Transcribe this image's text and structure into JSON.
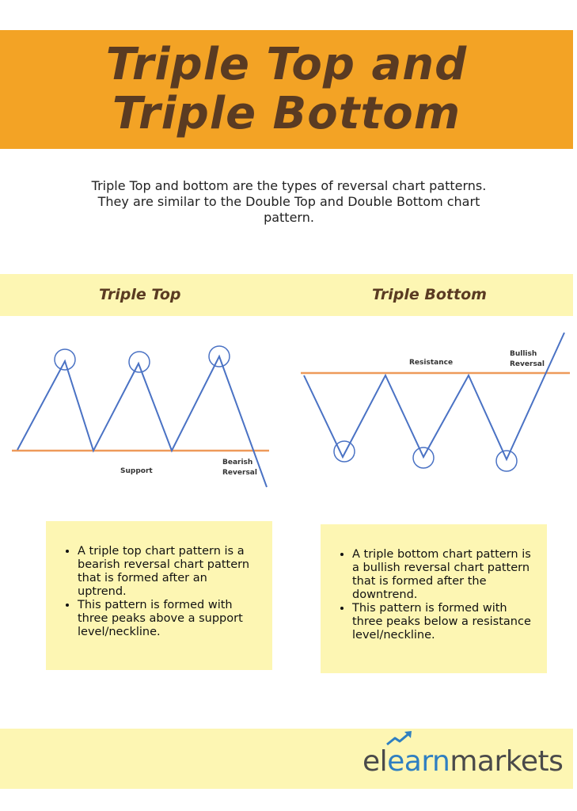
{
  "header": {
    "title": "Triple Top and Triple Bottom"
  },
  "intro": {
    "text": "Triple Top and bottom are the types of reversal chart patterns. They are similar to the Double Top and Double Bottom chart pattern."
  },
  "triple_top": {
    "heading": "Triple Top",
    "level_label": "Support",
    "reversal_label_line1": "Bearish",
    "reversal_label_line2": "Reversal",
    "bullets": [
      "A triple top chart pattern is a bearish reversal chart pattern that is formed after an uptrend.",
      "This pattern is formed with three peaks above a support level/neckline."
    ]
  },
  "triple_bottom": {
    "heading": "Triple Bottom",
    "level_label": "Resistance",
    "reversal_label_line1": "Bullish",
    "reversal_label_line2": "Reversal",
    "bullets": [
      "A triple bottom chart pattern is a bullish reversal chart pattern that is formed after the downtrend.",
      "This pattern is formed with three peaks below a resistance level/neckline."
    ]
  },
  "brand": {
    "logo_part1": "el",
    "logo_part2": "earn",
    "logo_part3": "markets"
  },
  "colors": {
    "banner": "#f3a325",
    "title_text": "#5a3b22",
    "band": "#fdf6b3",
    "price_line": "#4a72c4",
    "level_line": "#ee9a5a",
    "logo_blue": "#2f7fc1",
    "logo_gray": "#4a4a4a"
  }
}
